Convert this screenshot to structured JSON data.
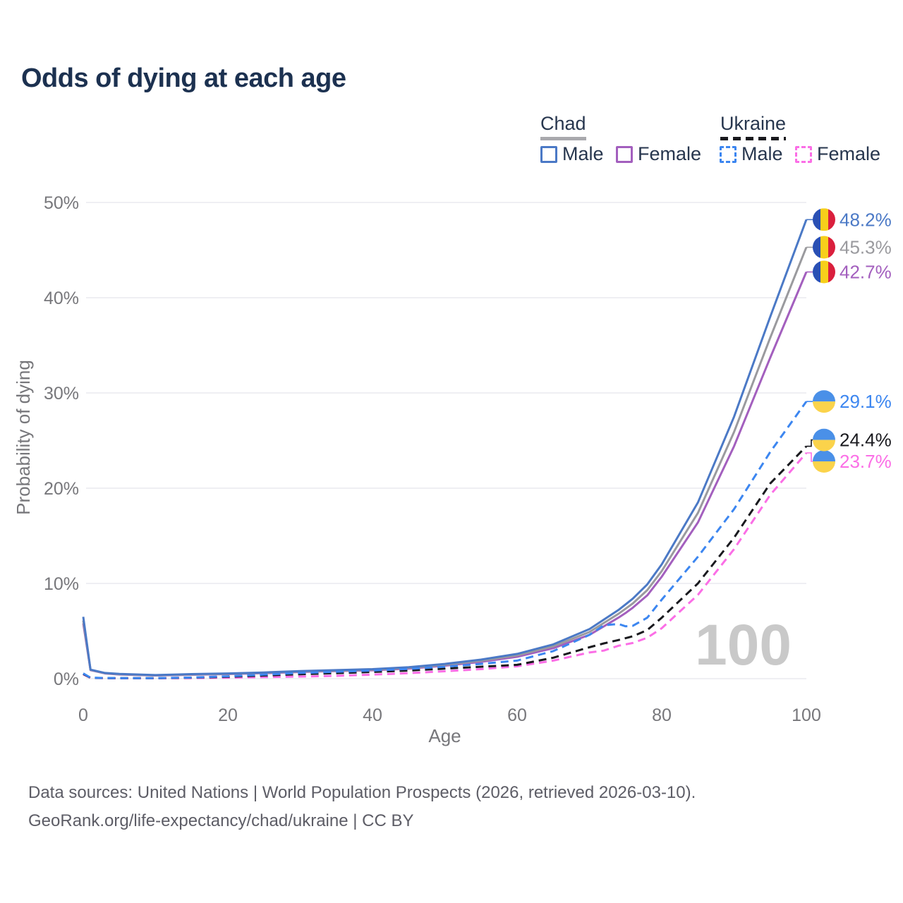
{
  "title": "Odds of dying at each age",
  "watermark": "100",
  "legend": {
    "groups": [
      {
        "country": "Chad",
        "line_style": "solid",
        "line_color": "#a9a9ad",
        "items": [
          {
            "label": "Male"
          },
          {
            "label": "Female"
          }
        ]
      },
      {
        "country": "Ukraine",
        "line_style": "dashed",
        "line_color": "#19191e",
        "items": [
          {
            "label": "Male"
          },
          {
            "label": "Female"
          }
        ]
      }
    ]
  },
  "footer": {
    "line1": "Data sources: United Nations | World Population Prospects (2026, retrieved 2026-03-10).",
    "line2": "GeoRank.org/life-expectancy/chad/ukraine | CC BY"
  },
  "colors": {
    "title_color": "#1c3150",
    "axis_text": "#77777b",
    "grid": "#eaeaef",
    "watermark": "#c9c9c9",
    "footer_text": "#5d5d66",
    "legend_text": "#27364e"
  },
  "chart_data": {
    "type": "line",
    "title": "Odds of dying at each age",
    "xlabel": "Age",
    "ylabel": "Probability of dying",
    "xlim": [
      0,
      100
    ],
    "ylim": [
      0,
      50
    ],
    "x_ticks": [
      0,
      20,
      40,
      60,
      80,
      100
    ],
    "y_ticks": [
      0,
      10,
      20,
      30,
      40,
      50
    ],
    "y_tick_suffix": "%",
    "grid": true,
    "legend_position": "top-right",
    "x": [
      0,
      1,
      3,
      5,
      10,
      15,
      20,
      25,
      30,
      35,
      40,
      45,
      50,
      55,
      60,
      65,
      70,
      72,
      74,
      75,
      76,
      78,
      80,
      85,
      90,
      95,
      100
    ],
    "series": [
      {
        "id": "chad-male",
        "name": "Chad Male",
        "country": "Chad",
        "sex": "Male",
        "color": "#4b79c6",
        "dash": null,
        "z": 3,
        "flag": "chad",
        "end_label": "48.2%",
        "end_value": 48.2,
        "label_dy": 0,
        "values": [
          6.5,
          0.95,
          0.6,
          0.5,
          0.38,
          0.48,
          0.55,
          0.65,
          0.8,
          0.9,
          1.0,
          1.2,
          1.55,
          2.0,
          2.6,
          3.6,
          5.2,
          6.2,
          7.2,
          7.8,
          8.4,
          9.9,
          12.0,
          18.5,
          27.5,
          38.0,
          48.2
        ]
      },
      {
        "id": "chad-female",
        "name": "Chad Female",
        "country": "Chad",
        "sex": "Female",
        "color": "#a35fbe",
        "dash": null,
        "z": 1,
        "flag": "chad",
        "end_label": "42.7%",
        "end_value": 42.7,
        "label_dy": 0,
        "values": [
          5.8,
          0.9,
          0.55,
          0.44,
          0.33,
          0.41,
          0.48,
          0.57,
          0.7,
          0.79,
          0.88,
          1.06,
          1.36,
          1.76,
          2.3,
          3.2,
          4.6,
          5.5,
          6.4,
          6.9,
          7.45,
          8.75,
          10.7,
          16.4,
          24.4,
          33.7,
          42.7
        ]
      },
      {
        "id": "chad-both-sexes",
        "name": "Chad (both sexes)",
        "country": "Chad",
        "sex": "Both",
        "color": "#9a9a9e",
        "dash": null,
        "z": 2,
        "flag": "chad",
        "end_label": "45.3%",
        "end_value": 45.3,
        "label_dy": 0,
        "values": [
          6.1,
          0.92,
          0.57,
          0.47,
          0.35,
          0.44,
          0.51,
          0.61,
          0.75,
          0.84,
          0.94,
          1.13,
          1.45,
          1.88,
          2.45,
          3.4,
          4.9,
          5.85,
          6.8,
          7.35,
          7.9,
          9.3,
          11.3,
          17.4,
          25.9,
          35.8,
          45.3
        ]
      },
      {
        "id": "ukraine-male",
        "name": "Ukraine Male",
        "country": "Ukraine",
        "sex": "Male",
        "color": "#3c86f0",
        "dash": "11 7",
        "z": 6,
        "flag": "ukraine",
        "end_label": "29.1%",
        "end_value": 29.1,
        "label_dy": 0,
        "values": [
          0.55,
          0.1,
          0.07,
          0.06,
          0.06,
          0.12,
          0.25,
          0.42,
          0.6,
          0.72,
          0.85,
          1.02,
          1.25,
          1.55,
          1.9,
          2.9,
          4.6,
          5.6,
          5.75,
          5.5,
          5.55,
          6.4,
          8.3,
          12.8,
          17.8,
          23.8,
          29.1
        ]
      },
      {
        "id": "ukraine-female",
        "name": "Ukraine Female",
        "country": "Ukraine",
        "sex": "Female",
        "color": "#fb6ee6",
        "dash": "11 7",
        "z": 4,
        "flag": "ukraine",
        "end_label": "23.7%",
        "end_value": 23.7,
        "label_dy": 12,
        "values": [
          0.45,
          0.08,
          0.05,
          0.04,
          0.04,
          0.06,
          0.1,
          0.16,
          0.22,
          0.3,
          0.42,
          0.58,
          0.78,
          1.0,
          1.3,
          1.9,
          2.75,
          2.95,
          3.45,
          3.6,
          3.75,
          4.3,
          5.3,
          8.8,
          13.6,
          19.3,
          23.7
        ]
      },
      {
        "id": "ukraine-both-sexes",
        "name": "Ukraine (both sexes)",
        "country": "Ukraine",
        "sex": "Both",
        "color": "#19191e",
        "dash": "11 7",
        "z": 5,
        "flag": "ukraine",
        "end_label": "24.4%",
        "end_value": 24.4,
        "label_dy": -9,
        "values": [
          0.5,
          0.09,
          0.06,
          0.05,
          0.05,
          0.1,
          0.2,
          0.33,
          0.47,
          0.58,
          0.7,
          0.85,
          1.05,
          1.25,
          1.45,
          2.2,
          3.3,
          3.7,
          4.05,
          4.25,
          4.45,
          5.1,
          6.4,
          10.0,
          14.8,
          20.5,
          24.4
        ]
      }
    ],
    "flag_colors": {
      "chad": [
        "#2a50b4",
        "#f7cf1b",
        "#da1f3d"
      ],
      "ukraine": [
        "#4a90e8",
        "#fbd34b"
      ]
    }
  }
}
